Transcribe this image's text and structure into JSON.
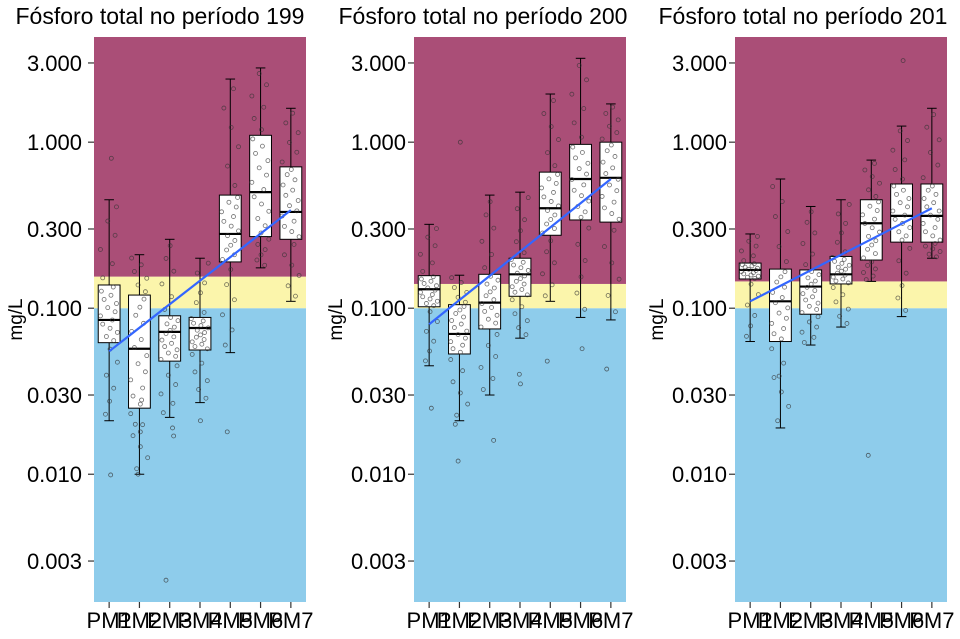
{
  "figure": {
    "colors": {
      "above": "#AA4E77",
      "mid": "#FBF5AB",
      "below": "#8ECCEB",
      "trend": "#3366FF",
      "point": "#333333"
    }
  },
  "chart_data": [
    {
      "type": "boxplot",
      "title": "Fósforo total no período 199",
      "xlabel": "",
      "ylabel": "mg/L",
      "y_scale": "log",
      "ylim": [
        0.0017,
        4.3
      ],
      "yticks": [
        0.003,
        0.01,
        0.03,
        0.1,
        0.3,
        1,
        3
      ],
      "ytick_labels": [
        "0.003",
        "0.010",
        "0.030",
        "0.100",
        "0.300",
        "1.000",
        "3.000"
      ],
      "bands": [
        {
          "from": 0.0017,
          "to": 0.1,
          "color": "below"
        },
        {
          "from": 0.1,
          "to": 0.155,
          "color": "mid"
        },
        {
          "from": 0.155,
          "to": 4.3,
          "color": "above"
        }
      ],
      "categories": [
        "PM1",
        "PM2",
        "PM3",
        "PM4",
        "PM5",
        "PM6",
        "PM7"
      ],
      "boxes": [
        {
          "q1": 0.062,
          "median": 0.085,
          "q3": 0.138,
          "low": 0.021,
          "high": 0.45
        },
        {
          "q1": 0.025,
          "median": 0.057,
          "q3": 0.12,
          "low": 0.01,
          "high": 0.21
        },
        {
          "q1": 0.048,
          "median": 0.072,
          "q3": 0.09,
          "low": 0.022,
          "high": 0.26
        },
        {
          "q1": 0.056,
          "median": 0.076,
          "q3": 0.088,
          "low": 0.027,
          "high": 0.2
        },
        {
          "q1": 0.19,
          "median": 0.28,
          "q3": 0.48,
          "low": 0.054,
          "high": 2.4
        },
        {
          "q1": 0.27,
          "median": 0.5,
          "q3": 1.1,
          "low": 0.175,
          "high": 2.8
        },
        {
          "q1": 0.26,
          "median": 0.38,
          "q3": 0.71,
          "low": 0.11,
          "high": 1.6
        }
      ],
      "outliers": [
        [
          0.8,
          0.0099
        ],
        [
          0.01,
          0.02,
          0.018,
          0.028
        ],
        [
          0.017,
          0.019,
          0.0023
        ],
        [
          0.021
        ],
        [
          0.018
        ],
        [],
        []
      ],
      "trend": {
        "start": 0.055,
        "end": 0.39
      }
    },
    {
      "type": "boxplot",
      "title": "Fósforo total no período 200",
      "xlabel": "",
      "ylabel": "mg/L",
      "y_scale": "log",
      "ylim": [
        0.0017,
        4.3
      ],
      "yticks": [
        0.003,
        0.01,
        0.03,
        0.1,
        0.3,
        1,
        3
      ],
      "ytick_labels": [
        "0.003",
        "0.010",
        "0.030",
        "0.100",
        "0.300",
        "1.000",
        "3.000"
      ],
      "bands": [
        {
          "from": 0.0017,
          "to": 0.1,
          "color": "below"
        },
        {
          "from": 0.1,
          "to": 0.14,
          "color": "mid"
        },
        {
          "from": 0.14,
          "to": 4.3,
          "color": "above"
        }
      ],
      "categories": [
        "PM1",
        "PM2",
        "PM3",
        "PM4",
        "PM5",
        "PM6",
        "PM7"
      ],
      "boxes": [
        {
          "q1": 0.102,
          "median": 0.13,
          "q3": 0.157,
          "low": 0.045,
          "high": 0.32
        },
        {
          "q1": 0.053,
          "median": 0.07,
          "q3": 0.105,
          "low": 0.021,
          "high": 0.158
        },
        {
          "q1": 0.075,
          "median": 0.108,
          "q3": 0.16,
          "low": 0.03,
          "high": 0.48
        },
        {
          "q1": 0.118,
          "median": 0.16,
          "q3": 0.2,
          "low": 0.066,
          "high": 0.5
        },
        {
          "q1": 0.275,
          "median": 0.4,
          "q3": 0.66,
          "low": 0.11,
          "high": 1.95
        },
        {
          "q1": 0.34,
          "median": 0.6,
          "q3": 0.97,
          "low": 0.088,
          "high": 3.2
        },
        {
          "q1": 0.33,
          "median": 0.61,
          "q3": 1.0,
          "low": 0.085,
          "high": 1.7
        }
      ],
      "outliers": [
        [
          0.025
        ],
        [
          0.012,
          0.02,
          1.0
        ],
        [
          0.016
        ],
        [
          0.035,
          0.04
        ],
        [
          0.048
        ],
        [
          0.057
        ],
        [
          0.043
        ]
      ],
      "trend": {
        "start": 0.08,
        "end": 0.6
      }
    },
    {
      "type": "boxplot",
      "title": "Fósforo total no período 201",
      "xlabel": "",
      "ylabel": "mg/L",
      "y_scale": "log",
      "ylim": [
        0.0017,
        4.3
      ],
      "yticks": [
        0.003,
        0.01,
        0.03,
        0.1,
        0.3,
        1,
        3
      ],
      "ytick_labels": [
        "0.003",
        "0.010",
        "0.030",
        "0.100",
        "0.300",
        "1.000",
        "3.000"
      ],
      "bands": [
        {
          "from": 0.0017,
          "to": 0.1,
          "color": "below"
        },
        {
          "from": 0.1,
          "to": 0.145,
          "color": "mid"
        },
        {
          "from": 0.145,
          "to": 4.3,
          "color": "above"
        }
      ],
      "categories": [
        "PM1",
        "PM2",
        "PM3",
        "PM4",
        "PM5",
        "PM6",
        "PM7"
      ],
      "boxes": [
        {
          "q1": 0.15,
          "median": 0.17,
          "q3": 0.187,
          "low": 0.063,
          "high": 0.28
        },
        {
          "q1": 0.063,
          "median": 0.11,
          "q3": 0.172,
          "low": 0.019,
          "high": 0.6
        },
        {
          "q1": 0.092,
          "median": 0.135,
          "q3": 0.17,
          "low": 0.06,
          "high": 0.41
        },
        {
          "q1": 0.14,
          "median": 0.16,
          "q3": 0.205,
          "low": 0.077,
          "high": 0.45
        },
        {
          "q1": 0.195,
          "median": 0.325,
          "q3": 0.45,
          "low": 0.145,
          "high": 0.78
        },
        {
          "q1": 0.25,
          "median": 0.36,
          "q3": 0.56,
          "low": 0.089,
          "high": 1.25
        },
        {
          "q1": 0.25,
          "median": 0.36,
          "q3": 0.56,
          "low": 0.2,
          "high": 1.6
        }
      ],
      "outliers": [
        [],
        [
          0.039
        ],
        [],
        [],
        [
          0.013
        ],
        [
          3.1
        ],
        []
      ],
      "trend": {
        "start": 0.11,
        "end": 0.4
      }
    }
  ]
}
